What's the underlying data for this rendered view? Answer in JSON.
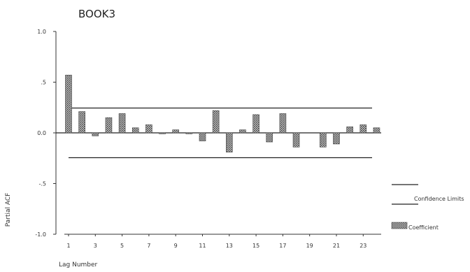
{
  "chart_data": {
    "type": "bar",
    "title": "BOOK3",
    "xlabel": "Lag Number",
    "ylabel": "Partial ACF",
    "ylim": [
      -1.0,
      1.0
    ],
    "y_ticks": [
      "1.0",
      ".5",
      "0.0",
      "-.5",
      "-1.0"
    ],
    "y_tick_values": [
      1.0,
      0.5,
      0.0,
      -0.5,
      -1.0
    ],
    "x_tick_labels": [
      "1",
      "3",
      "5",
      "7",
      "9",
      "11",
      "13",
      "15",
      "17",
      "19",
      "21",
      "23"
    ],
    "x_tick_lags": [
      1,
      3,
      5,
      7,
      9,
      11,
      13,
      15,
      17,
      19,
      21,
      23
    ],
    "categories": [
      1,
      2,
      3,
      4,
      5,
      6,
      7,
      8,
      9,
      10,
      11,
      12,
      13,
      14,
      15,
      16,
      17,
      18,
      19,
      20,
      21,
      22,
      23,
      24
    ],
    "series": [
      {
        "name": "Coefficient",
        "values": [
          0.57,
          0.21,
          -0.03,
          0.15,
          0.19,
          0.05,
          0.08,
          -0.01,
          0.03,
          -0.01,
          -0.08,
          0.22,
          -0.19,
          0.03,
          0.18,
          -0.09,
          0.19,
          -0.14,
          0.0,
          -0.14,
          -0.11,
          0.06,
          0.08,
          0.05
        ]
      }
    ],
    "confidence_limits": [
      0.245,
      -0.245
    ],
    "legend": {
      "placement": "right",
      "entries": [
        "Confidence Limits",
        "Coefficient"
      ]
    },
    "grid": false,
    "colors": {
      "bar_fill": "#9a9a9a",
      "bar_hatch": "#444444",
      "axis": "#333333",
      "confidence_line": "#222222",
      "zero_line": "#222222"
    }
  }
}
